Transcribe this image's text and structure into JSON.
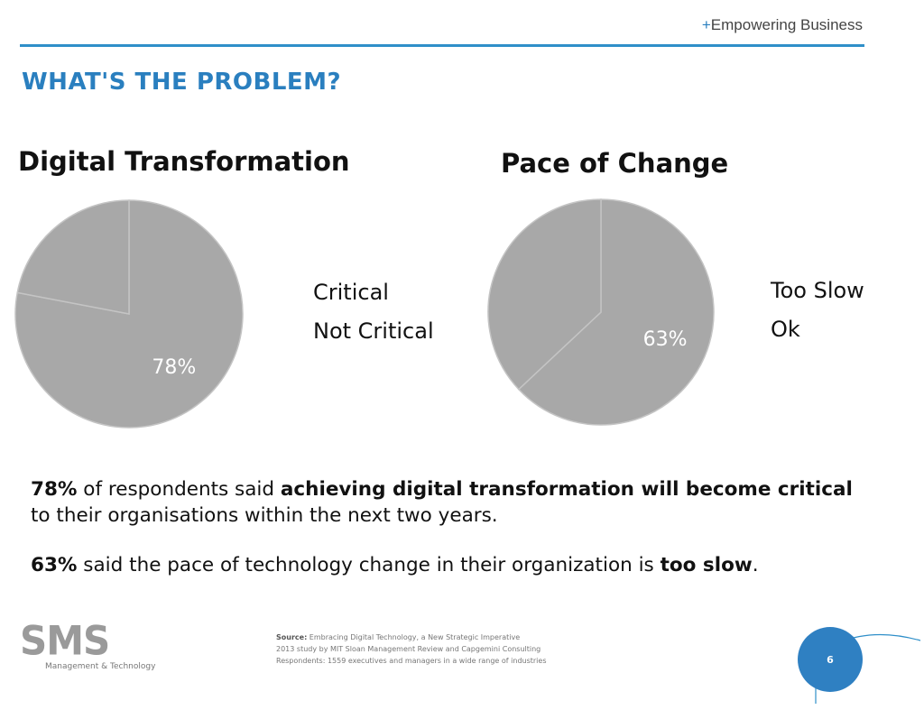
{
  "header": {
    "tagline_plus": "+",
    "tagline": "Empowering Business",
    "title": "WHAT'S THE PROBLEM?"
  },
  "colors": {
    "accent": "#2f8fc9",
    "pie_fill": "#a8a8a8",
    "pie_divider": "#c4c4c4",
    "badge": "#2f80c2"
  },
  "chart_data": [
    {
      "type": "pie",
      "title": "Digital Transformation",
      "categories": [
        "Critical",
        "Not Critical"
      ],
      "values": [
        78,
        22
      ],
      "data_labels": [
        "78%",
        ""
      ],
      "legend_position": "right"
    },
    {
      "type": "pie",
      "title": "Pace of Change",
      "categories": [
        "Too Slow",
        "Ok"
      ],
      "values": [
        63,
        37
      ],
      "data_labels": [
        "63%",
        ""
      ],
      "legend_position": "right"
    }
  ],
  "body": {
    "p1_a": "78%",
    "p1_b": " of respondents said ",
    "p1_c": "achieving digital transformation will become critical",
    "p1_d": " to their organisations within the next two years.",
    "p2_a": "63%",
    "p2_b": " said the pace of technology change in their organization is ",
    "p2_c": "too slow",
    "p2_d": "."
  },
  "footer": {
    "logo_text": "SMS",
    "logo_sub": "Management & Technology",
    "source_label": "Source:",
    "source_line1": " Embracing Digital Technology, a New Strategic Imperative",
    "source_line2": "2013 study by MIT Sloan Management Review and Capgemini Consulting",
    "source_line3": "Respondents: 1559 executives and managers in a wide range of industries",
    "page_number": "6"
  }
}
